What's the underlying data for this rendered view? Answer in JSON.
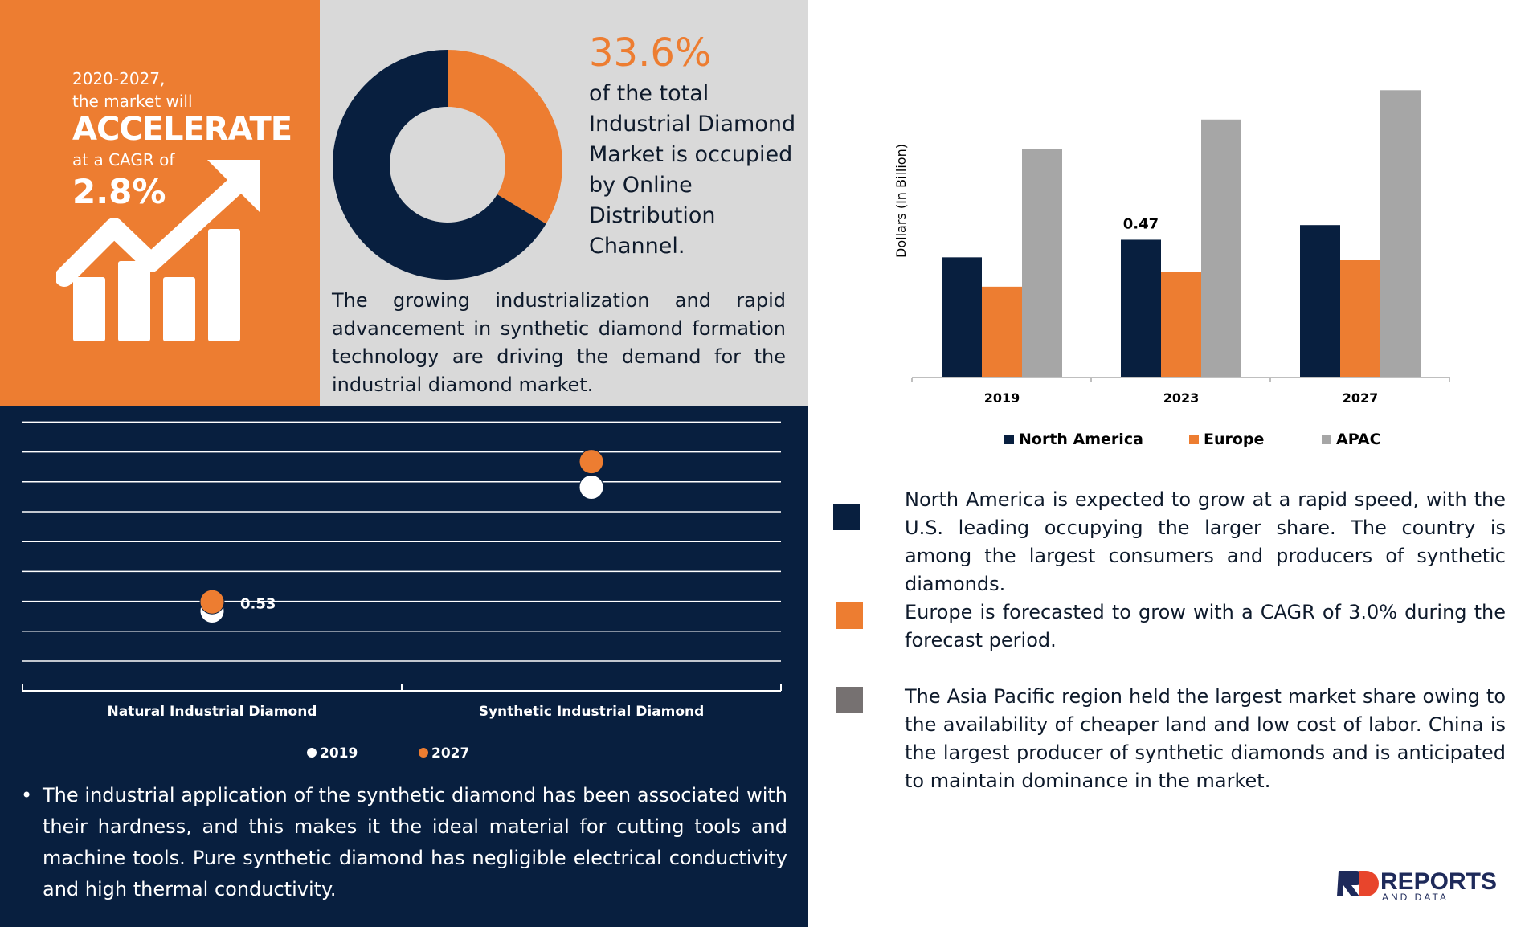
{
  "highlight": {
    "line1": "2020-2027,",
    "line2": "the market will",
    "accelerate": "ACCELERATE",
    "cagr_prefix": "at a CAGR of",
    "cagr": "2.8%"
  },
  "donut": {
    "percent_label": "33.6%",
    "description": "of the total Industrial Diamond Market is occupied by Online Distribution Channel.",
    "colors": {
      "share": "#ED7D31",
      "rest": "#081F3F"
    }
  },
  "intro_text": "The growing industrialization and rapid advancement in synthetic diamond formation technology are driving the demand for the industrial diamond market.",
  "bar_chart": {
    "ylabel": "Dollars (In Billion)",
    "categories": [
      "2019",
      "2023",
      "2027"
    ],
    "annotation": "0.47",
    "legend": [
      "North America",
      "Europe",
      "APAC"
    ]
  },
  "dot_chart": {
    "categories": [
      "Natural Industrial Diamond",
      "Synthetic Industrial Diamond"
    ],
    "annotation": "0.53",
    "legend": [
      "2019",
      "2027"
    ]
  },
  "chart_data": [
    {
      "type": "pie",
      "values": [
        33.6,
        66.4
      ],
      "colors": [
        "#ED7D31",
        "#081F3F"
      ]
    },
    {
      "type": "bar",
      "categories": [
        "2019",
        "2023",
        "2027"
      ],
      "series": [
        {
          "name": "North America",
          "values": [
            0.41,
            0.47,
            0.52
          ],
          "color": "#081F3F"
        },
        {
          "name": "Europe",
          "values": [
            0.31,
            0.36,
            0.4
          ],
          "color": "#ED7D31"
        },
        {
          "name": "APAC",
          "values": [
            0.78,
            0.88,
            0.98
          ],
          "color": "#A6A6A6"
        }
      ],
      "ylabel": "Dollars (In Billion)",
      "ylim": [
        0,
        1.0
      ],
      "annotations": [
        {
          "category": "2023",
          "series": "North America",
          "text": "0.47"
        }
      ],
      "legend_position": "bottom"
    },
    {
      "type": "scatter",
      "categories": [
        "Natural Industrial Diamond",
        "Synthetic Industrial Diamond"
      ],
      "series": [
        {
          "name": "2019",
          "values": [
            0.53,
            1.35
          ],
          "color": "#FFFFFF"
        },
        {
          "name": "2027",
          "values": [
            0.59,
            1.52
          ],
          "color": "#ED7D31"
        }
      ],
      "ylim": [
        0,
        1.8
      ],
      "grid": true,
      "annotations": [
        {
          "category": "Natural Industrial Diamond",
          "series": "2019",
          "text": "0.53"
        }
      ],
      "legend_position": "bottom"
    }
  ],
  "bullet_text": "The industrial application of the synthetic diamond has been associated with their hardness, and this makes it the ideal material for cutting tools and machine tools. Pure synthetic diamond has negligible electrical conductivity and high thermal conductivity.",
  "regions": [
    {
      "color": "#081F3F",
      "text": "North America is expected to grow at a rapid speed, with the U.S. leading occupying the larger share. The country is among the largest consumers and producers of synthetic diamonds."
    },
    {
      "color": "#ED7D31",
      "text": "Europe is forecasted to grow with a CAGR of 3.0% during the forecast period."
    },
    {
      "color": "#767171",
      "text": "The Asia Pacific region held the largest market share owing to the availability of cheaper land and low cost of labor. China is the largest producer of synthetic diamonds and is anticipated to maintain dominance in the market."
    }
  ],
  "logo": {
    "brand": "REPORTS",
    "sub": "AND DATA"
  }
}
